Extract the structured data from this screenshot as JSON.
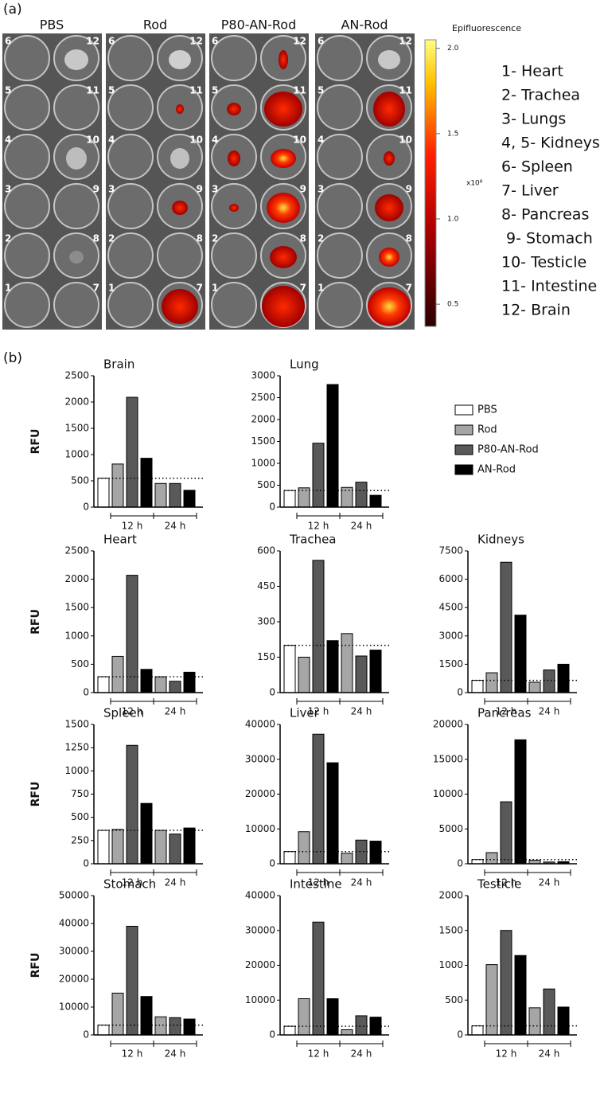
{
  "panel_a": {
    "label": "(a)",
    "columns": [
      "PBS",
      "Rod",
      "P80-AN-Rod",
      "AN-Rod"
    ],
    "well_numbers": {
      "left": [
        "6",
        "5",
        "4",
        "3",
        "2",
        "1"
      ],
      "right": [
        "12",
        "11",
        "10",
        "9",
        "8",
        "7"
      ]
    },
    "colorbar": {
      "title": "Epifluorescence",
      "unit": "x10⁸",
      "clim": [
        0.37,
        2.05
      ],
      "ticks": [
        {
          "value": 2,
          "label": "2.0"
        },
        1.5,
        {
          "value": 1,
          "label": "1.0"
        },
        0.5
      ]
    },
    "organ_key": [
      "1- Heart",
      "2- Trachea",
      "3- Lungs",
      "4, 5- Kidneys",
      "6- Spleen",
      "7- Liver",
      "8- Pancreas",
      " 9- Stomach",
      "10- Testicle",
      "11- Intestine",
      "12- Brain"
    ]
  },
  "panel_b_label": "(b)",
  "legend": [
    {
      "name": "PBS",
      "color": "#ffffff"
    },
    {
      "name": "Rod",
      "color": "#a6a6a6"
    },
    {
      "name": "P80-AN-Rod",
      "color": "#595959"
    },
    {
      "name": "AN-Rod",
      "color": "#000000"
    }
  ],
  "chart_data": [
    {
      "type": "bar",
      "title": "Brain",
      "ylabel": "RFU",
      "categories": [
        "12 h",
        "24 h"
      ],
      "control": 550,
      "series": [
        {
          "values": [
            820,
            450
          ]
        },
        {
          "values": [
            2090,
            450
          ]
        },
        {
          "values": [
            930,
            320
          ]
        }
      ],
      "ylim": [
        0,
        2500
      ],
      "yticks": [
        0,
        500,
        1000,
        1500,
        2000,
        2500
      ]
    },
    {
      "type": "bar",
      "title": "Lung",
      "categories": [
        "12 h",
        "24 h"
      ],
      "control": 380,
      "series": [
        {
          "values": [
            440,
            450
          ]
        },
        {
          "values": [
            1460,
            570
          ]
        },
        {
          "values": [
            2800,
            270
          ]
        }
      ],
      "ylim": [
        0,
        3000
      ],
      "yticks": [
        0,
        500,
        1000,
        1500,
        2000,
        2500,
        3000
      ]
    },
    {
      "type": "bar",
      "title": "Heart",
      "ylabel": "RFU",
      "categories": [
        "12 h",
        "24 h"
      ],
      "control": 280,
      "series": [
        {
          "values": [
            640,
            280
          ]
        },
        {
          "values": [
            2070,
            200
          ]
        },
        {
          "values": [
            410,
            360
          ]
        }
      ],
      "ylim": [
        0,
        2500
      ],
      "yticks": [
        0,
        500,
        1000,
        1500,
        2000,
        2500
      ]
    },
    {
      "type": "bar",
      "title": "Trachea",
      "categories": [
        "12 h",
        "24 h"
      ],
      "control": 200,
      "series": [
        {
          "values": [
            150,
            250
          ]
        },
        {
          "values": [
            560,
            155
          ]
        },
        {
          "values": [
            220,
            180
          ]
        }
      ],
      "ylim": [
        0,
        600
      ],
      "yticks": [
        0,
        150,
        300,
        450,
        600
      ]
    },
    {
      "type": "bar",
      "title": "Kidneys",
      "categories": [
        "12 h",
        "24 h"
      ],
      "control": 650,
      "series": [
        {
          "values": [
            1050,
            550
          ]
        },
        {
          "values": [
            6900,
            1200
          ]
        },
        {
          "values": [
            4100,
            1500
          ]
        }
      ],
      "ylim": [
        0,
        7500
      ],
      "yticks": [
        0,
        1500,
        3000,
        4500,
        6000,
        7500
      ]
    },
    {
      "type": "bar",
      "title": "Spleen",
      "ylabel": "RFU",
      "categories": [
        "12 h",
        "24 h"
      ],
      "control": 360,
      "series": [
        {
          "values": [
            370,
            360
          ]
        },
        {
          "values": [
            1275,
            320
          ]
        },
        {
          "values": [
            650,
            385
          ]
        }
      ],
      "ylim": [
        0,
        1500
      ],
      "yticks": [
        0,
        250,
        500,
        750,
        1000,
        1250,
        1500
      ]
    },
    {
      "type": "bar",
      "title": "Liver",
      "categories": [
        "12 h",
        "24 h"
      ],
      "control": 3500,
      "series": [
        {
          "values": [
            9200,
            3000
          ]
        },
        {
          "values": [
            37200,
            6800
          ]
        },
        {
          "values": [
            29000,
            6500
          ]
        }
      ],
      "ylim": [
        0,
        40000
      ],
      "yticks": [
        0,
        10000,
        20000,
        30000,
        40000
      ]
    },
    {
      "type": "bar",
      "title": "Pancreas",
      "categories": [
        "12 h",
        "24 h"
      ],
      "control": 600,
      "series": [
        {
          "values": [
            1600,
            500
          ]
        },
        {
          "values": [
            8900,
            250
          ]
        },
        {
          "values": [
            17800,
            300
          ]
        }
      ],
      "ylim": [
        0,
        20000
      ],
      "yticks": [
        0,
        5000,
        10000,
        15000,
        20000
      ]
    },
    {
      "type": "bar",
      "title": "Stomach",
      "ylabel": "RFU",
      "categories": [
        "12 h",
        "24 h"
      ],
      "control": 3500,
      "series": [
        {
          "values": [
            15000,
            6500
          ]
        },
        {
          "values": [
            39000,
            6200
          ]
        },
        {
          "values": [
            13800,
            5700
          ]
        }
      ],
      "ylim": [
        0,
        50000
      ],
      "yticks": [
        0,
        10000,
        20000,
        30000,
        40000,
        50000
      ]
    },
    {
      "type": "bar",
      "title": "Intestine",
      "categories": [
        "12 h",
        "24 h"
      ],
      "control": 2500,
      "series": [
        {
          "values": [
            10400,
            1500
          ]
        },
        {
          "values": [
            32400,
            5500
          ]
        },
        {
          "values": [
            10400,
            5100
          ]
        }
      ],
      "ylim": [
        0,
        40000
      ],
      "yticks": [
        0,
        10000,
        20000,
        30000,
        40000
      ]
    },
    {
      "type": "bar",
      "title": "Testicle",
      "categories": [
        "12 h",
        "24 h"
      ],
      "control": 130,
      "series": [
        {
          "values": [
            1010,
            390
          ]
        },
        {
          "values": [
            1500,
            660
          ]
        },
        {
          "values": [
            1140,
            400
          ]
        }
      ],
      "ylim": [
        0,
        2000
      ],
      "yticks": [
        0,
        500,
        1000,
        1500,
        2000
      ]
    }
  ]
}
